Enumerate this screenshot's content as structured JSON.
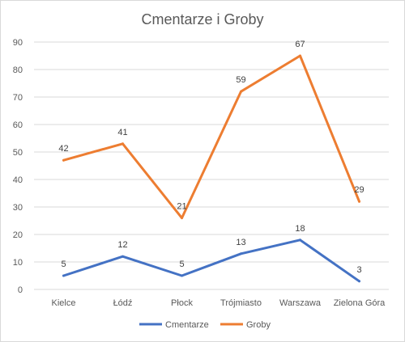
{
  "chart_data": {
    "type": "line",
    "title": "Cmentarze i Groby",
    "categories": [
      "Kielce",
      "Łódź",
      "Płock",
      "Trójmiasto",
      "Warszawa",
      "Zielona Góra"
    ],
    "ylim": [
      0,
      90
    ],
    "yticks": [
      0,
      10,
      20,
      30,
      40,
      50,
      60,
      70,
      80,
      90
    ],
    "grid": true,
    "legend": "bottom",
    "series": [
      {
        "name": "Cmentarze",
        "color": "#4472c4",
        "values": [
          5,
          12,
          5,
          13,
          18,
          3
        ],
        "labels": [
          "5",
          "12",
          "5",
          "13",
          "18",
          "3"
        ]
      },
      {
        "name": "Groby",
        "color": "#ed7d31",
        "values": [
          47,
          53,
          26,
          72,
          85,
          32
        ],
        "labels": [
          "42",
          "41",
          "21",
          "59",
          "67",
          "29"
        ]
      }
    ]
  }
}
